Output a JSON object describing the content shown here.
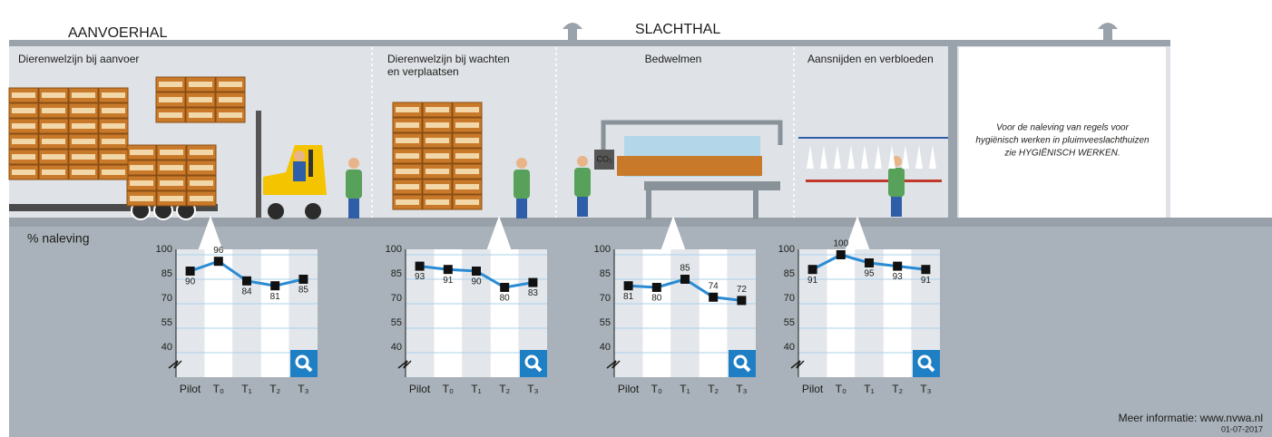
{
  "halls": [
    "AANVOERHAL",
    "SLACHTHAL"
  ],
  "sections": [
    [
      "Dierenwelzijn bij aanvoer"
    ],
    [
      "Dierenwelzijn bij wachten",
      "en verplaatsen"
    ],
    [
      "Bedwelmen"
    ],
    [
      "Aansnijden en verbloeden"
    ]
  ],
  "machine_label": "CO₂",
  "note": [
    "Voor de naleving van regels voor",
    "hygiënisch werken in pluimveeslachthuizen",
    "zie HYGIËNISCH WERKEN."
  ],
  "axis_title": "% naleving",
  "footer": {
    "info": "Meer informatie: www.nvwa.nl",
    "date": "01-07-2017"
  },
  "chart_data": [
    {
      "type": "line",
      "categories": [
        "Pilot",
        "T₀",
        "T₁",
        "T₂",
        "T₃"
      ],
      "values": [
        90,
        96,
        84,
        81,
        85
      ],
      "color": "#2a8bd4",
      "marker_color": "#111111",
      "ylim": [
        25,
        100
      ],
      "yticks": [
        40,
        55,
        70,
        85,
        100
      ],
      "grid": true
    },
    {
      "type": "line",
      "categories": [
        "Pilot",
        "T₀",
        "T₁",
        "T₂",
        "T₃"
      ],
      "values": [
        93,
        91,
        90,
        80,
        83
      ],
      "color": "#2a8bd4",
      "marker_color": "#111111",
      "ylim": [
        25,
        100
      ],
      "yticks": [
        40,
        55,
        70,
        85,
        100
      ],
      "grid": true
    },
    {
      "type": "line",
      "categories": [
        "Pilot",
        "T₀",
        "T₁",
        "T₂",
        "T₃"
      ],
      "values": [
        81,
        80,
        85,
        74,
        72
      ],
      "color": "#2a8bd4",
      "marker_color": "#111111",
      "ylim": [
        25,
        100
      ],
      "yticks": [
        40,
        55,
        70,
        85,
        100
      ],
      "grid": true
    },
    {
      "type": "line",
      "categories": [
        "Pilot",
        "T₀",
        "T₁",
        "T₂",
        "T₃"
      ],
      "values": [
        91,
        100,
        95,
        93,
        91
      ],
      "color": "#2a8bd4",
      "marker_color": "#111111",
      "ylim": [
        25,
        100
      ],
      "yticks": [
        40,
        55,
        70,
        85,
        100
      ],
      "grid": true
    }
  ]
}
